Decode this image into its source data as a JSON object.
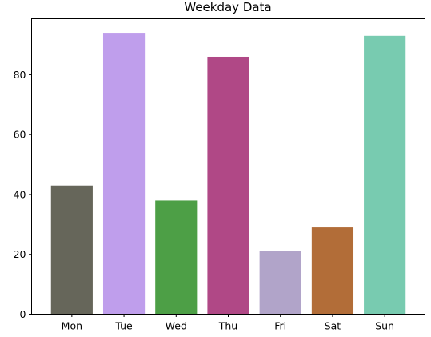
{
  "chart_data": {
    "type": "bar",
    "title": "Weekday Data",
    "xlabel": "",
    "ylabel": "",
    "categories": [
      "Mon",
      "Tue",
      "Wed",
      "Thu",
      "Fri",
      "Sat",
      "Sun"
    ],
    "values": [
      43,
      94,
      38,
      86,
      21,
      29,
      93
    ],
    "colors": [
      "#66665a",
      "#bf9eec",
      "#4d9f46",
      "#b04886",
      "#b1a4c9",
      "#b26d38",
      "#78cbb0"
    ],
    "ylim": [
      0,
      98.7
    ],
    "yticks": [
      0,
      20,
      40,
      60,
      80
    ],
    "grid": false,
    "legend": "none"
  }
}
